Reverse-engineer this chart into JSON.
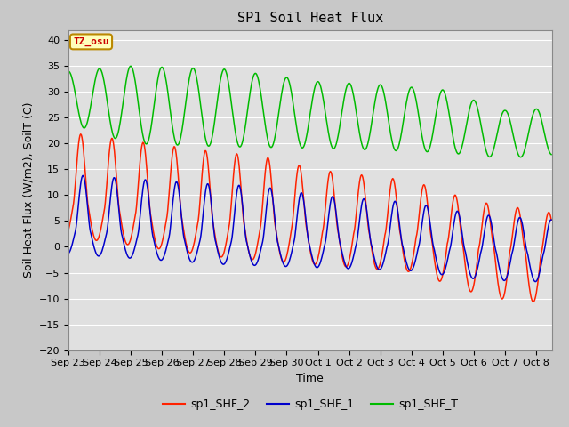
{
  "title": "SP1 Soil Heat Flux",
  "xlabel": "Time",
  "ylabel": "Soil Heat Flux (W/m2), SoilT (C)",
  "ylim": [
    -20,
    42
  ],
  "yticks": [
    -20,
    -15,
    -10,
    -5,
    0,
    5,
    10,
    15,
    20,
    25,
    30,
    35,
    40
  ],
  "fig_bg_color": "#c8c8c8",
  "plot_bg_color": "#e0e0e0",
  "xtick_labels": [
    "Sep 23",
    "Sep 24",
    "Sep 25",
    "Sep 26",
    "Sep 27",
    "Sep 28",
    "Sep 29",
    "Sep 30",
    "Oct 1",
    "Oct 2",
    "Oct 3",
    "Oct 4",
    "Oct 5",
    "Oct 6",
    "Oct 7",
    "Oct 8"
  ],
  "legend_entries": [
    "sp1_SHF_2",
    "sp1_SHF_1",
    "sp1_SHF_T"
  ],
  "line_colors": [
    "#ff2200",
    "#0000cc",
    "#00bb00"
  ],
  "tz_label": "TZ_osu",
  "title_fontsize": 11,
  "label_fontsize": 9,
  "tick_fontsize": 8,
  "n_days": 15.5
}
